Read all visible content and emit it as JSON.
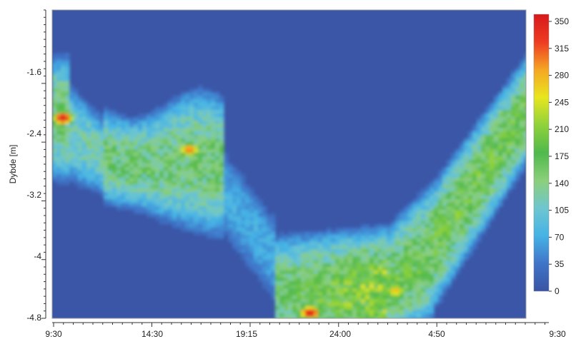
{
  "chart_data": {
    "type": "heatmap",
    "title": "",
    "xlabel": "",
    "ylabel": "Dybde [m]",
    "x_ticks": [
      "9:30",
      "14:30",
      "19:15",
      "24:00",
      "4:50",
      "9:30"
    ],
    "y_ticks": [
      "-1.6",
      "-2.4",
      "-3.2",
      "-4",
      "-4.8"
    ],
    "y_tick_values": [
      -1.6,
      -2.4,
      -3.2,
      -4.0,
      -4.8
    ],
    "ylim": [
      -4.8,
      -0.6
    ],
    "colorbar": {
      "ticks": [
        0,
        35,
        70,
        105,
        140,
        175,
        210,
        245,
        280,
        315,
        350
      ],
      "range": [
        0,
        350
      ],
      "colors": [
        "#3a55a4",
        "#3f74c8",
        "#45b3e6",
        "#6ec6cf",
        "#8ccf7a",
        "#4fb94c",
        "#8fd23a",
        "#e8e61e",
        "#f5a623",
        "#ee3b22",
        "#d7191c"
      ]
    },
    "background_value": 10,
    "hot_spots": [
      {
        "time_frac": 0.018,
        "depth": -2.05,
        "value": 350
      },
      {
        "time_frac": 0.285,
        "depth": -2.48,
        "value": 300
      },
      {
        "time_frac": 0.54,
        "depth": -4.7,
        "value": 350
      },
      {
        "time_frac": 0.72,
        "depth": -4.4,
        "value": 270
      }
    ]
  }
}
